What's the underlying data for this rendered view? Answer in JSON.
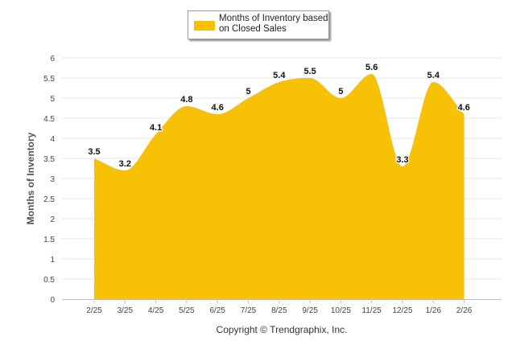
{
  "chart_data": {
    "type": "area",
    "title": "",
    "xlabel": "",
    "ylabel": "Months of Inventory",
    "categories": [
      "2/25",
      "3/25",
      "4/25",
      "5/25",
      "6/25",
      "7/25",
      "8/25",
      "9/25",
      "10/25",
      "11/25",
      "12/25",
      "1/26",
      "2/26"
    ],
    "series": [
      {
        "name": "Months of Inventory based on Closed Sales",
        "values": [
          3.5,
          3.2,
          4.1,
          4.8,
          4.6,
          5,
          5.4,
          5.5,
          5,
          5.6,
          3.3,
          5.4,
          4.6
        ],
        "labels": [
          "3.5",
          "3.2",
          "4.1",
          "4.8",
          "4.6",
          "5",
          "5.4",
          "5.5",
          "5",
          "5.6",
          "3.3",
          "5.4",
          "4.6"
        ]
      }
    ],
    "ylim": [
      0,
      6
    ],
    "yticks": [
      "0",
      "0.5",
      "1",
      "1.5",
      "2",
      "2.5",
      "3",
      "3.5",
      "4",
      "4.5",
      "5",
      "5.5",
      "6"
    ],
    "legend": {
      "position": "top-center",
      "entry": "Months of Inventory based on Closed Sales"
    },
    "grid": true
  },
  "colors": {
    "fill": "#f7c106",
    "grid": "#e6e6e6",
    "axis": "#c0c0c0",
    "tick_text": "#444444",
    "label_text": "#111111"
  },
  "legend": {
    "line1": "Months of Inventory based",
    "line2": "on Closed Sales"
  },
  "footer": {
    "copyright": "Copyright © Trendgraphix, Inc."
  }
}
